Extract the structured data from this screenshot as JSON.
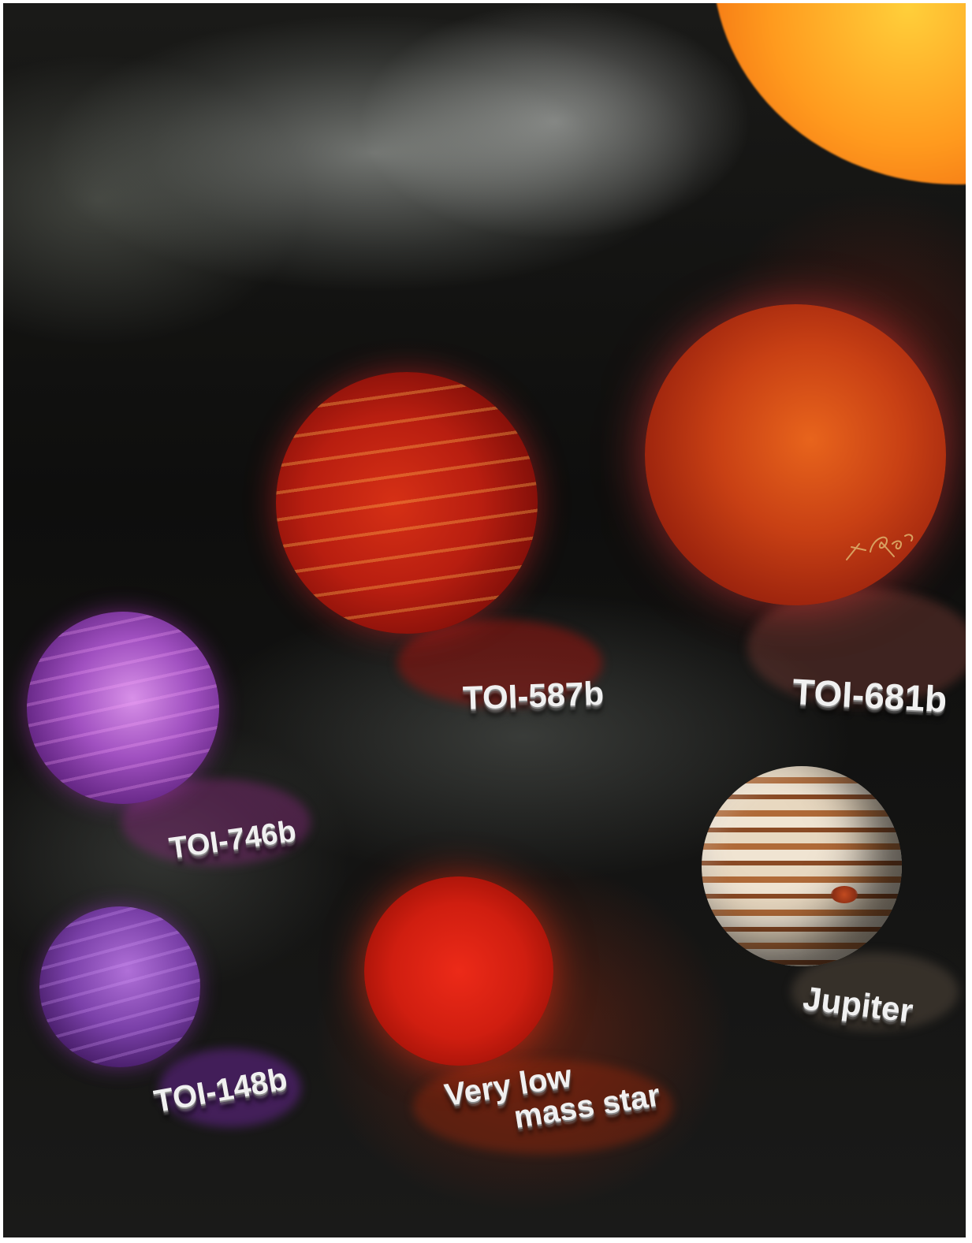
{
  "labels": {
    "toi_587b": "TOI-587b",
    "toi_681b": "TOI-681b",
    "toi_746b": "TOI-746b",
    "toi_148b": "TOI-148b",
    "very_low_mass_star_line1": "Very low",
    "very_low_mass_star_line2": "mass star",
    "jupiter": "Jupiter"
  },
  "signature": "T. Roger",
  "colors": {
    "background": "#111110",
    "label_text": "#f0f0f0",
    "toi_587b": "#b81e10",
    "toi_681b": "#c84014",
    "toi_746b": "#a050c0",
    "toi_148b": "#7a40a8",
    "very_low_mass_star": "#d01e10",
    "jupiter": "#c89a68",
    "sun": "#ff9a1e"
  }
}
